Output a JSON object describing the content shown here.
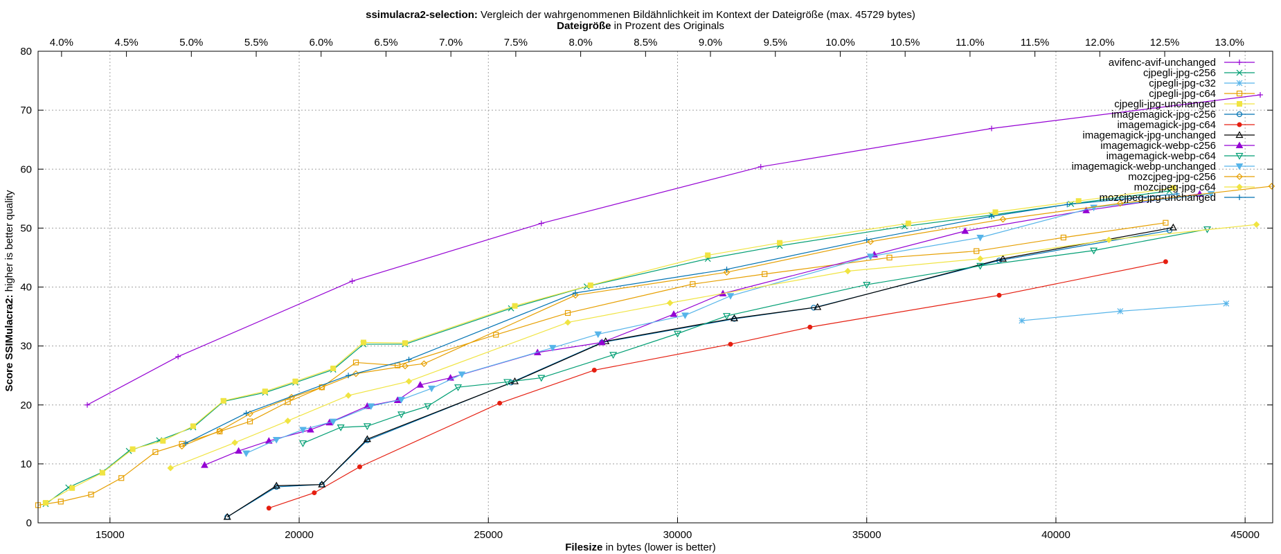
{
  "chart_data": {
    "type": "line",
    "title_bold": "ssimulacra2-selection:",
    "title_rest": " Vergleich der wahrgenommenen Bildähnlichkeit im Kontext der Dateigröße (max. 45729 bytes)",
    "subtitle_bold": "Dateigröße",
    "subtitle_rest": " in Prozent des Originals",
    "xlabel_bold": "Filesize",
    "xlabel_rest": " in bytes (lower is better)",
    "ylabel_bold": "Score SSIMulacra2:",
    "ylabel_rest": " higher is better quality",
    "xlim": [
      13100,
      45729
    ],
    "ylim": [
      0,
      80
    ],
    "x_ticks": [
      15000,
      20000,
      25000,
      30000,
      35000,
      40000,
      45000
    ],
    "y_ticks": [
      0,
      10,
      20,
      30,
      40,
      50,
      60,
      70,
      80
    ],
    "top_ticks": [
      "4.0%",
      "4.5%",
      "5.0%",
      "5.5%",
      "6.0%",
      "6.5%",
      "7.0%",
      "7.5%",
      "8.0%",
      "8.5%",
      "9.0%",
      "9.5%",
      "10.0%",
      "10.5%",
      "11.0%",
      "11.5%",
      "12.0%",
      "12.5%",
      "13.0%"
    ],
    "top_axis_percent_of": 343000,
    "grid": true,
    "legend_position": "top-right",
    "series": [
      {
        "name": "avifenc-avif-unchanged",
        "color": "#9400d3",
        "marker": "plus",
        "points": [
          [
            14400,
            20
          ],
          [
            16800,
            28.2
          ],
          [
            21400,
            41
          ],
          [
            26400,
            50.8
          ],
          [
            32200,
            60.4
          ],
          [
            38300,
            66.9
          ],
          [
            45400,
            72.6
          ]
        ]
      },
      {
        "name": "cjpegli-jpg-c256",
        "color": "#009e73",
        "marker": "cross",
        "points": [
          [
            13300,
            3.2
          ],
          [
            13900,
            6
          ],
          [
            14800,
            8.6
          ],
          [
            15500,
            12.2
          ],
          [
            16300,
            14
          ],
          [
            17200,
            16.2
          ],
          [
            18000,
            20.6
          ],
          [
            19100,
            22.1
          ],
          [
            19900,
            23.8
          ],
          [
            20900,
            26
          ],
          [
            21700,
            30.3
          ],
          [
            22800,
            30.3
          ],
          [
            25600,
            36.4
          ],
          [
            27600,
            40.1
          ],
          [
            30800,
            44.8
          ],
          [
            32700,
            47
          ],
          [
            36000,
            50.3
          ],
          [
            38300,
            52.2
          ],
          [
            40400,
            54.1
          ],
          [
            43000,
            56.3
          ]
        ]
      },
      {
        "name": "cjpegli-jpg-c32",
        "color": "#56b4e9",
        "marker": "star",
        "points": [
          [
            39100,
            34.3
          ],
          [
            41700,
            35.9
          ],
          [
            44500,
            37.2
          ]
        ]
      },
      {
        "name": "cjpegli-jpg-c64",
        "color": "#e69f00",
        "marker": "square",
        "points": [
          [
            13100,
            3
          ],
          [
            13700,
            3.6
          ],
          [
            14500,
            4.8
          ],
          [
            15300,
            7.6
          ],
          [
            16200,
            12
          ],
          [
            16900,
            13.4
          ],
          [
            17900,
            15.5
          ],
          [
            18700,
            17.2
          ],
          [
            19700,
            20.5
          ],
          [
            20600,
            23
          ],
          [
            21500,
            27.2
          ],
          [
            22600,
            26.7
          ],
          [
            25200,
            31.9
          ],
          [
            27100,
            35.6
          ],
          [
            30400,
            40.5
          ],
          [
            32300,
            42.2
          ],
          [
            35600,
            45
          ],
          [
            37900,
            46.1
          ],
          [
            40200,
            48.4
          ],
          [
            42900,
            50.9
          ]
        ]
      },
      {
        "name": "cjpegli-jpg-unchanged",
        "color": "#f0e442",
        "marker": "filled-square",
        "points": [
          [
            13300,
            3.4
          ],
          [
            14000,
            5.9
          ],
          [
            14800,
            8.5
          ],
          [
            15600,
            12.5
          ],
          [
            16400,
            13.9
          ],
          [
            17200,
            16.4
          ],
          [
            18000,
            20.7
          ],
          [
            19100,
            22.3
          ],
          [
            19900,
            24
          ],
          [
            20900,
            26.2
          ],
          [
            21700,
            30.6
          ],
          [
            22800,
            30.5
          ],
          [
            25700,
            36.8
          ],
          [
            27700,
            40.3
          ],
          [
            30800,
            45.4
          ],
          [
            32700,
            47.5
          ],
          [
            36100,
            50.8
          ],
          [
            38400,
            52.7
          ],
          [
            40600,
            54.6
          ],
          [
            43100,
            56.8
          ]
        ]
      },
      {
        "name": "imagemagick-jpg-c256",
        "color": "#0072b2",
        "marker": "circle",
        "points": [
          [
            18100,
            1
          ],
          [
            19400,
            6.1
          ],
          [
            20600,
            6.5
          ],
          [
            21800,
            14
          ],
          [
            25600,
            23.8
          ],
          [
            28000,
            30.6
          ],
          [
            31500,
            34.6
          ],
          [
            33600,
            36.5
          ],
          [
            38500,
            44.5
          ],
          [
            43000,
            49.6
          ]
        ]
      },
      {
        "name": "imagemagick-jpg-c64",
        "color": "#e51e10",
        "marker": "filled-circle",
        "points": [
          [
            19200,
            2.5
          ],
          [
            20400,
            5.1
          ],
          [
            21600,
            9.5
          ],
          [
            25300,
            20.3
          ],
          [
            27800,
            25.9
          ],
          [
            31400,
            30.3
          ],
          [
            33500,
            33.2
          ],
          [
            38500,
            38.6
          ],
          [
            42900,
            44.3
          ]
        ]
      },
      {
        "name": "imagemagick-jpg-unchanged",
        "color": "#000000",
        "marker": "triangle",
        "points": [
          [
            18100,
            1
          ],
          [
            19400,
            6.3
          ],
          [
            20600,
            6.5
          ],
          [
            21800,
            14.2
          ],
          [
            25700,
            24
          ],
          [
            28100,
            30.8
          ],
          [
            31500,
            34.7
          ],
          [
            33700,
            36.6
          ],
          [
            38600,
            44.8
          ],
          [
            43100,
            50.1
          ]
        ]
      },
      {
        "name": "imagemagick-webp-c256",
        "color": "#9400d3",
        "marker": "filled-triangle",
        "points": [
          [
            17500,
            9.8
          ],
          [
            18400,
            12.2
          ],
          [
            19200,
            13.9
          ],
          [
            20300,
            15.8
          ],
          [
            20800,
            17
          ],
          [
            21800,
            19.8
          ],
          [
            22600,
            20.8
          ],
          [
            23200,
            23.4
          ],
          [
            24000,
            24.6
          ],
          [
            26300,
            28.9
          ],
          [
            28000,
            30.6
          ],
          [
            29900,
            35.4
          ],
          [
            31200,
            38.9
          ],
          [
            35200,
            45.5
          ],
          [
            37600,
            49.5
          ],
          [
            40800,
            53
          ],
          [
            43800,
            55.8
          ]
        ]
      },
      {
        "name": "imagemagick-webp-c64",
        "color": "#009e73",
        "marker": "triangle-down",
        "points": [
          [
            20100,
            13.5
          ],
          [
            21100,
            16.2
          ],
          [
            21800,
            16.4
          ],
          [
            22700,
            18.4
          ],
          [
            23400,
            19.8
          ],
          [
            24200,
            23
          ],
          [
            25500,
            23.9
          ],
          [
            26400,
            24.6
          ],
          [
            28300,
            28.5
          ],
          [
            30000,
            32.1
          ],
          [
            31300,
            35.1
          ],
          [
            35000,
            40.4
          ],
          [
            38000,
            43.6
          ],
          [
            41000,
            46.2
          ],
          [
            44000,
            49.8
          ]
        ]
      },
      {
        "name": "imagemagick-webp-unchanged",
        "color": "#56b4e9",
        "marker": "filled-triangle-down",
        "points": [
          [
            18600,
            11.8
          ],
          [
            19400,
            14.1
          ],
          [
            20100,
            15.8
          ],
          [
            20900,
            17.2
          ],
          [
            21900,
            19.8
          ],
          [
            22700,
            20.9
          ],
          [
            23500,
            22.8
          ],
          [
            24300,
            25.2
          ],
          [
            26700,
            29.7
          ],
          [
            27900,
            32
          ],
          [
            30200,
            35.2
          ],
          [
            31400,
            38.5
          ],
          [
            35100,
            45.2
          ],
          [
            38000,
            48.4
          ],
          [
            41000,
            53.5
          ],
          [
            44100,
            55.8
          ]
        ]
      },
      {
        "name": "mozcjpeg-jpg-c256",
        "color": "#e69f00",
        "marker": "diamond",
        "points": [
          [
            16900,
            13
          ],
          [
            17900,
            15.6
          ],
          [
            18700,
            18.5
          ],
          [
            19800,
            21.3
          ],
          [
            20600,
            23
          ],
          [
            21500,
            25.3
          ],
          [
            22800,
            26.6
          ],
          [
            23300,
            27
          ],
          [
            27300,
            38.6
          ],
          [
            31300,
            42.5
          ],
          [
            35100,
            47.7
          ],
          [
            38600,
            51.5
          ],
          [
            41700,
            54.2
          ],
          [
            45700,
            57.1
          ]
        ]
      },
      {
        "name": "mozcjpeg-jpg-c64",
        "color": "#f0e442",
        "marker": "filled-diamond",
        "points": [
          [
            16600,
            9.3
          ],
          [
            18300,
            13.6
          ],
          [
            19700,
            17.3
          ],
          [
            21300,
            21.6
          ],
          [
            22900,
            24
          ],
          [
            27100,
            34
          ],
          [
            29800,
            37.3
          ],
          [
            34500,
            42.7
          ],
          [
            38000,
            44.8
          ],
          [
            41400,
            48
          ],
          [
            45300,
            50.6
          ]
        ]
      },
      {
        "name": "mozcjpeg-jpg-unchanged",
        "color": "#0072b2",
        "marker": "plus",
        "points": [
          [
            17000,
            13.5
          ],
          [
            18600,
            18.6
          ],
          [
            21300,
            25
          ],
          [
            22900,
            27.7
          ],
          [
            27300,
            39
          ],
          [
            31300,
            43
          ],
          [
            35000,
            48
          ],
          [
            38300,
            52
          ],
          [
            40300,
            54
          ],
          [
            43200,
            55.8
          ]
        ]
      }
    ]
  }
}
